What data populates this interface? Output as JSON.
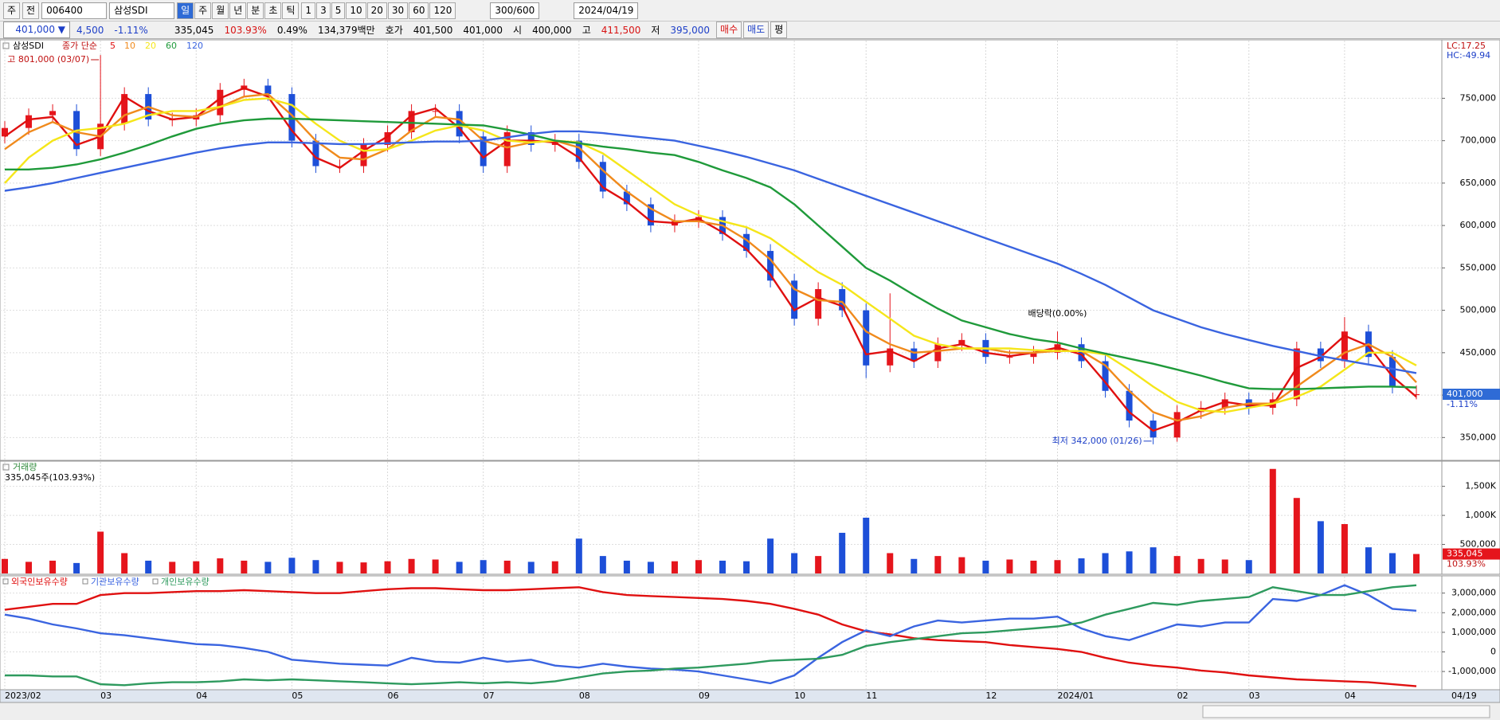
{
  "toolbar": {
    "period_type": "주",
    "ticker": "006400",
    "prefix": "전",
    "name": "삼성SDI",
    "periods": [
      "일",
      "주",
      "월",
      "년",
      "분",
      "초",
      "틱"
    ],
    "intervals": [
      "1",
      "3",
      "5",
      "10",
      "20",
      "30",
      "60",
      "120"
    ],
    "count": "300/600",
    "date": "2024/04/19"
  },
  "info_bar": {
    "price": "401,000 ▼",
    "change": "4,500",
    "change_rate": "-1.11%",
    "volume": "335,045",
    "volume_rate": "103.93%",
    "turnover": "0.49%",
    "amount": "134,379백만",
    "ask_label": "호가",
    "ask": "401,500",
    "bid": "401,000",
    "open_label": "시",
    "open": "400,000",
    "high_label": "고",
    "high": "411,500",
    "low_label": "저",
    "low": "395,000",
    "buttons": [
      "매수",
      "매도",
      "평"
    ]
  },
  "chart_data": [
    {
      "type": "candlestick",
      "title": "삼성SDI",
      "legend_title": "종가 단순",
      "up_color": "#e5151c",
      "down_color": "#1d4fd8",
      "open": [
        705000,
        715000,
        730000,
        735000,
        690000,
        720000,
        755000,
        725000,
        725000,
        730000,
        760000,
        765000,
        755000,
        700000,
        670000,
        670000,
        695000,
        710000,
        735000,
        735000,
        705000,
        670000,
        710000,
        695000,
        700000,
        675000,
        640000,
        625000,
        600000,
        605000,
        610000,
        590000,
        570000,
        535000,
        490000,
        525000,
        500000,
        435000,
        455000,
        440000,
        460000,
        465000,
        445000,
        445000,
        450000,
        460000,
        440000,
        405000,
        370000,
        350000,
        380000,
        385000,
        395000,
        385000,
        395000,
        455000,
        440000,
        475000,
        445000,
        400000
      ],
      "high": [
        723000,
        738000,
        743000,
        743000,
        801000,
        763000,
        763000,
        733000,
        738000,
        768000,
        773000,
        773000,
        763000,
        708000,
        678000,
        703000,
        718000,
        743000,
        743000,
        743000,
        713000,
        718000,
        718000,
        708000,
        708000,
        683000,
        648000,
        633000,
        613000,
        618000,
        618000,
        598000,
        578000,
        543000,
        533000,
        533000,
        508000,
        520000,
        463000,
        468000,
        473000,
        473000,
        453000,
        458000,
        475000,
        468000,
        448000,
        413000,
        378000,
        388000,
        393000,
        403000,
        403000,
        403000,
        463000,
        463000,
        492000,
        483000,
        453000,
        411500
      ],
      "low": [
        697000,
        707000,
        722000,
        682000,
        682000,
        712000,
        717000,
        717000,
        717000,
        722000,
        752000,
        747000,
        692000,
        662000,
        662000,
        662000,
        687000,
        702000,
        727000,
        697000,
        662000,
        662000,
        687000,
        687000,
        667000,
        632000,
        617000,
        592000,
        592000,
        597000,
        582000,
        562000,
        527000,
        482000,
        482000,
        492000,
        420000,
        427000,
        432000,
        432000,
        452000,
        437000,
        437000,
        437000,
        442000,
        432000,
        397000,
        362000,
        342000,
        345000,
        372000,
        377000,
        377000,
        377000,
        387000,
        432000,
        432000,
        437000,
        402000,
        395000
      ],
      "close": [
        715000,
        730000,
        735000,
        690000,
        720000,
        755000,
        725000,
        725000,
        730000,
        760000,
        765000,
        755000,
        700000,
        670000,
        670000,
        695000,
        710000,
        735000,
        735000,
        705000,
        670000,
        710000,
        695000,
        700000,
        675000,
        640000,
        625000,
        600000,
        605000,
        610000,
        590000,
        570000,
        535000,
        490000,
        525000,
        500000,
        435000,
        455000,
        440000,
        460000,
        465000,
        445000,
        445000,
        450000,
        460000,
        440000,
        405000,
        370000,
        350000,
        380000,
        385000,
        395000,
        385000,
        395000,
        455000,
        440000,
        475000,
        445000,
        410000,
        401000
      ],
      "lines": [
        {
          "name": "5",
          "color": "#e01010",
          "values": [
            705000,
            725000,
            728000,
            695000,
            705000,
            752000,
            735000,
            725000,
            728000,
            750000,
            762000,
            752000,
            712000,
            680000,
            668000,
            688000,
            705000,
            730000,
            738000,
            715000,
            680000,
            700000,
            700000,
            698000,
            680000,
            645000,
            628000,
            605000,
            603000,
            608000,
            592000,
            572000,
            542000,
            500000,
            515000,
            505000,
            448000,
            452000,
            440000,
            455000,
            460000,
            450000,
            446000,
            450000,
            456000,
            448000,
            415000,
            380000,
            358000,
            368000,
            382000,
            392000,
            388000,
            388000,
            432000,
            445000,
            470000,
            458000,
            422000,
            398000
          ]
        },
        {
          "name": "10",
          "color": "#f08a1c",
          "values": [
            690000,
            710000,
            722000,
            710000,
            705000,
            730000,
            740000,
            730000,
            728000,
            740000,
            752000,
            755000,
            730000,
            700000,
            680000,
            678000,
            690000,
            712000,
            728000,
            725000,
            700000,
            692000,
            698000,
            700000,
            692000,
            665000,
            640000,
            620000,
            605000,
            605000,
            600000,
            583000,
            560000,
            525000,
            512000,
            510000,
            475000,
            460000,
            450000,
            452000,
            455000,
            455000,
            450000,
            450000,
            452000,
            452000,
            435000,
            405000,
            380000,
            370000,
            375000,
            385000,
            390000,
            390000,
            410000,
            430000,
            450000,
            460000,
            445000,
            415000
          ]
        },
        {
          "name": "20",
          "color": "#f5e61a",
          "values": [
            650000,
            680000,
            700000,
            712000,
            715000,
            720000,
            730000,
            735000,
            735000,
            740000,
            748000,
            750000,
            742000,
            720000,
            700000,
            688000,
            690000,
            700000,
            712000,
            718000,
            712000,
            700000,
            698000,
            700000,
            698000,
            685000,
            665000,
            645000,
            625000,
            612000,
            605000,
            598000,
            585000,
            565000,
            545000,
            530000,
            510000,
            490000,
            470000,
            460000,
            455000,
            455000,
            455000,
            453000,
            452000,
            452000,
            448000,
            430000,
            410000,
            392000,
            382000,
            380000,
            385000,
            390000,
            398000,
            410000,
            430000,
            450000,
            450000,
            435000
          ]
        },
        {
          "name": "60",
          "color": "#1f9a3a",
          "values": [
            666000,
            666000,
            668000,
            672000,
            678000,
            686000,
            695000,
            705000,
            714000,
            720000,
            724000,
            726000,
            726000,
            725000,
            724000,
            723000,
            722000,
            721000,
            720000,
            719000,
            718000,
            713000,
            707000,
            700000,
            697000,
            693000,
            690000,
            686000,
            683000,
            675000,
            665000,
            656000,
            645000,
            625000,
            600000,
            575000,
            550000,
            535000,
            518000,
            502000,
            488000,
            480000,
            472000,
            466000,
            462000,
            455000,
            449000,
            443000,
            437000,
            430000,
            423000,
            415000,
            408000,
            407000,
            407000,
            408000,
            409000,
            410000,
            410000,
            409000
          ]
        },
        {
          "name": "120",
          "color": "#3a64e0",
          "values": [
            641000,
            645000,
            650000,
            656000,
            662000,
            668000,
            674000,
            680000,
            686000,
            691000,
            695000,
            698000,
            698000,
            697000,
            696000,
            696000,
            697000,
            698000,
            699000,
            699000,
            700000,
            704000,
            708000,
            711000,
            711000,
            709000,
            706000,
            703000,
            700000,
            694000,
            688000,
            681000,
            673000,
            665000,
            655000,
            645000,
            635000,
            625000,
            615000,
            605000,
            595000,
            585000,
            575000,
            565000,
            555000,
            543000,
            530000,
            515000,
            500000,
            490000,
            480000,
            472000,
            465000,
            458000,
            452000,
            446000,
            441000,
            436000,
            431000,
            426000
          ]
        }
      ],
      "ylim": [
        324000,
        818000
      ],
      "yticks": [
        {
          "value": 350000,
          "label": "350,000"
        },
        {
          "value": 400000,
          "label": "400,000"
        },
        {
          "value": 450000,
          "label": "450,000"
        },
        {
          "value": 500000,
          "label": "500,000"
        },
        {
          "value": 550000,
          "label": "550,000"
        },
        {
          "value": 600000,
          "label": "600,000"
        },
        {
          "value": 650000,
          "label": "650,000"
        },
        {
          "value": 700000,
          "label": "700,000"
        },
        {
          "value": 750000,
          "label": "750,000"
        }
      ],
      "annotations": [
        {
          "value": 801000,
          "label": "고 801,000 (03/07)",
          "of": "high"
        },
        {
          "value": 342000,
          "label": "최저 342,000 (01/26)",
          "of": "low"
        }
      ],
      "note": "배당락(0.00%)",
      "indicator_labels": [
        "LC:17.25",
        "HC:-49.94"
      ],
      "last": {
        "value": 401000,
        "label": "401,000"
      },
      "last_change": "-1.11%",
      "grid": true
    },
    {
      "type": "bar",
      "title": "거래량",
      "subtitle": "335,045주(103.93%)",
      "values": [
        250000,
        200000,
        220000,
        180000,
        720000,
        350000,
        220000,
        200000,
        210000,
        260000,
        220000,
        200000,
        270000,
        230000,
        200000,
        190000,
        210000,
        250000,
        240000,
        200000,
        230000,
        220000,
        200000,
        210000,
        600000,
        300000,
        220000,
        200000,
        210000,
        230000,
        220000,
        210000,
        600000,
        350000,
        300000,
        700000,
        960000,
        350000,
        250000,
        300000,
        280000,
        220000,
        240000,
        220000,
        230000,
        260000,
        350000,
        380000,
        450000,
        300000,
        250000,
        240000,
        230000,
        1800000,
        1300000,
        900000,
        850000,
        450000,
        350000,
        335045
      ],
      "ylim": [
        0,
        1920000
      ],
      "yticks": [
        {
          "value": 500000,
          "label": "500,000"
        },
        {
          "value": 1000000,
          "label": "1,000K"
        },
        {
          "value": 1500000,
          "label": "1,500K"
        }
      ],
      "last": {
        "value": 335045,
        "label": "335,045"
      },
      "last_rate": "103.93%",
      "grid": true
    },
    {
      "type": "line",
      "categories": [
        "2023/02",
        null,
        null,
        null,
        "03",
        null,
        null,
        null,
        "04",
        null,
        null,
        null,
        "05",
        null,
        null,
        null,
        "06",
        null,
        null,
        null,
        "07",
        null,
        null,
        null,
        "08",
        null,
        null,
        null,
        null,
        "09",
        null,
        null,
        null,
        "10",
        null,
        null,
        "11",
        null,
        null,
        null,
        null,
        "12",
        null,
        null,
        "2024/01",
        null,
        null,
        null,
        null,
        "02",
        null,
        null,
        "03",
        null,
        null,
        null,
        "04",
        null,
        null,
        null
      ],
      "series": [
        {
          "name": "외국인보유수량",
          "color": "#e01010",
          "values": [
            2150000,
            2300000,
            2450000,
            2450000,
            2900000,
            3000000,
            3000000,
            3050000,
            3100000,
            3100000,
            3150000,
            3100000,
            3050000,
            3000000,
            3000000,
            3100000,
            3200000,
            3250000,
            3250000,
            3200000,
            3150000,
            3150000,
            3200000,
            3250000,
            3300000,
            3050000,
            2900000,
            2850000,
            2800000,
            2750000,
            2700000,
            2600000,
            2450000,
            2200000,
            1900000,
            1400000,
            1050000,
            900000,
            700000,
            600000,
            550000,
            500000,
            350000,
            250000,
            150000,
            0,
            -300000,
            -550000,
            -700000,
            -800000,
            -950000,
            -1050000,
            -1200000,
            -1300000,
            -1400000,
            -1450000,
            -1500000,
            -1550000,
            -1650000,
            -1750000
          ]
        },
        {
          "name": "기관보유수량",
          "color": "#3a64e0",
          "values": [
            1900000,
            1700000,
            1400000,
            1200000,
            950000,
            850000,
            700000,
            550000,
            400000,
            350000,
            200000,
            0,
            -400000,
            -500000,
            -600000,
            -650000,
            -700000,
            -300000,
            -500000,
            -550000,
            -300000,
            -500000,
            -400000,
            -700000,
            -800000,
            -600000,
            -750000,
            -850000,
            -900000,
            -1000000,
            -1200000,
            -1400000,
            -1600000,
            -1200000,
            -300000,
            500000,
            1100000,
            800000,
            1300000,
            1600000,
            1500000,
            1600000,
            1700000,
            1700000,
            1800000,
            1200000,
            800000,
            600000,
            1000000,
            1400000,
            1300000,
            1500000,
            1500000,
            2700000,
            2600000,
            2900000,
            3400000,
            2900000,
            2200000,
            2100000
          ]
        },
        {
          "name": "개인보유수량",
          "color": "#2e9a5e",
          "values": [
            -1200000,
            -1200000,
            -1250000,
            -1250000,
            -1650000,
            -1700000,
            -1600000,
            -1550000,
            -1550000,
            -1500000,
            -1400000,
            -1450000,
            -1400000,
            -1450000,
            -1500000,
            -1550000,
            -1600000,
            -1650000,
            -1600000,
            -1550000,
            -1600000,
            -1550000,
            -1600000,
            -1500000,
            -1300000,
            -1100000,
            -1000000,
            -950000,
            -850000,
            -800000,
            -700000,
            -600000,
            -450000,
            -400000,
            -350000,
            -150000,
            300000,
            500000,
            650000,
            800000,
            950000,
            1000000,
            1100000,
            1200000,
            1300000,
            1500000,
            1900000,
            2200000,
            2500000,
            2400000,
            2600000,
            2700000,
            2800000,
            3300000,
            3100000,
            2900000,
            2900000,
            3100000,
            3300000,
            3400000
          ]
        }
      ],
      "ylim": [
        -1930000,
        3840000
      ],
      "yticks": [
        {
          "value": -1000000,
          "label": "-1,000,000"
        },
        0,
        {
          "value": 1000000,
          "label": "1,000,000"
        },
        {
          "value": 2000000,
          "label": "2,000,000"
        },
        {
          "value": 3000000,
          "label": "3,000,000"
        }
      ],
      "end_label": "04/19",
      "grid": true
    }
  ]
}
